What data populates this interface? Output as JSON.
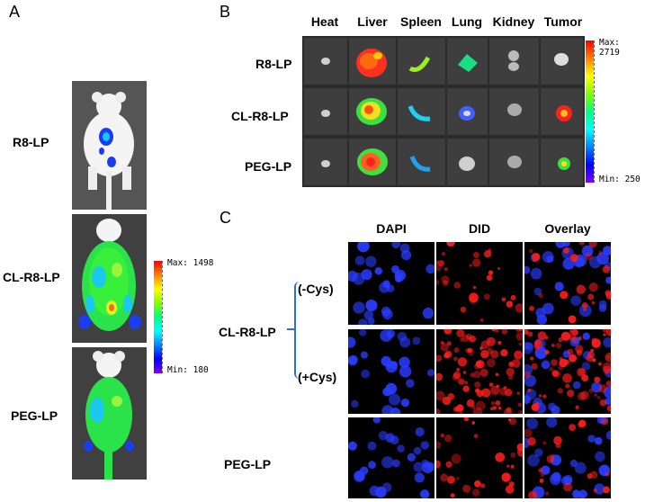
{
  "panels": {
    "A": {
      "letter": "A",
      "rows": [
        "R8-LP",
        "CL-R8-LP",
        "PEG-LP"
      ],
      "scale": {
        "max_label": "Max: 1498",
        "min_label": "Min: 180"
      }
    },
    "B": {
      "letter": "B",
      "columns": [
        "Heat",
        "Liver",
        "Spleen",
        "Lung",
        "Kidney",
        "Tumor"
      ],
      "rows": [
        "R8-LP",
        "CL-R8-LP",
        "PEG-LP"
      ],
      "scale": {
        "max_label": "Max: 2719",
        "min_label": "Min: 250"
      }
    },
    "C": {
      "letter": "C",
      "columns": [
        "DAPI",
        "DID",
        "Overlay"
      ],
      "group_label": "CL-R8-LP",
      "conditions": [
        "(-Cys)",
        "(+Cys)"
      ],
      "bottom_label": "PEG-LP"
    }
  },
  "colors": {
    "background": "#ffffff",
    "image_bg": "#3a3a3a",
    "dapi": "#2a3cff",
    "did": "#ff1e1e",
    "bracket": "#2f6fd1"
  }
}
